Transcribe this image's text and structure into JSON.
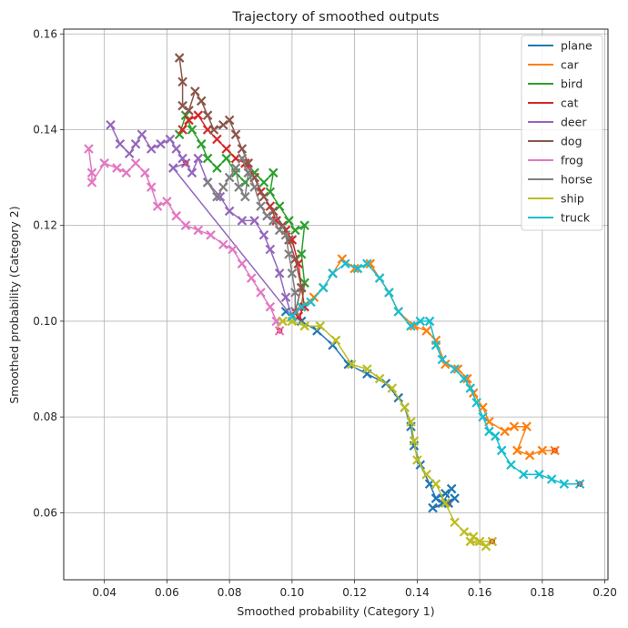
{
  "chart_data": {
    "type": "line",
    "title": "Trajectory of smoothed outputs",
    "xlabel": "Smoothed probability (Category 1)",
    "ylabel": "Smoothed probability (Category 2)",
    "xlim": [
      0.027,
      0.201
    ],
    "ylim": [
      0.046,
      0.161
    ],
    "xticks": [
      0.04,
      0.06,
      0.08,
      0.1,
      0.12,
      0.14,
      0.16,
      0.18,
      0.2
    ],
    "xtick_labels": [
      "0.04",
      "0.06",
      "0.08",
      "0.10",
      "0.12",
      "0.14",
      "0.16",
      "0.18",
      "0.20"
    ],
    "yticks": [
      0.06,
      0.08,
      0.1,
      0.12,
      0.14,
      0.16
    ],
    "ytick_labels": [
      "0.06",
      "0.08",
      "0.10",
      "0.12",
      "0.14",
      "0.16"
    ],
    "grid": true,
    "legend": "top-right",
    "marker": "x",
    "series": [
      {
        "name": "plane",
        "color": "#1f77b4",
        "points": [
          [
            0.098,
            0.102
          ],
          [
            0.103,
            0.1
          ],
          [
            0.108,
            0.098
          ],
          [
            0.113,
            0.095
          ],
          [
            0.118,
            0.091
          ],
          [
            0.124,
            0.089
          ],
          [
            0.13,
            0.087
          ],
          [
            0.134,
            0.084
          ],
          [
            0.136,
            0.082
          ],
          [
            0.138,
            0.078
          ],
          [
            0.139,
            0.074
          ],
          [
            0.141,
            0.07
          ],
          [
            0.144,
            0.066
          ],
          [
            0.146,
            0.063
          ],
          [
            0.149,
            0.064
          ],
          [
            0.151,
            0.065
          ],
          [
            0.148,
            0.062
          ],
          [
            0.152,
            0.063
          ],
          [
            0.145,
            0.061
          ],
          [
            0.15,
            0.062
          ]
        ]
      },
      {
        "name": "car",
        "color": "#ff7f0e",
        "points": [
          [
            0.103,
            0.103
          ],
          [
            0.107,
            0.105
          ],
          [
            0.11,
            0.107
          ],
          [
            0.113,
            0.11
          ],
          [
            0.116,
            0.113
          ],
          [
            0.12,
            0.111
          ],
          [
            0.125,
            0.112
          ],
          [
            0.128,
            0.109
          ],
          [
            0.131,
            0.106
          ],
          [
            0.134,
            0.102
          ],
          [
            0.139,
            0.099
          ],
          [
            0.143,
            0.098
          ],
          [
            0.146,
            0.096
          ],
          [
            0.149,
            0.091
          ],
          [
            0.153,
            0.09
          ],
          [
            0.156,
            0.088
          ],
          [
            0.158,
            0.085
          ],
          [
            0.161,
            0.082
          ],
          [
            0.163,
            0.079
          ],
          [
            0.168,
            0.077
          ],
          [
            0.171,
            0.078
          ],
          [
            0.175,
            0.078
          ],
          [
            0.172,
            0.073
          ],
          [
            0.176,
            0.072
          ],
          [
            0.18,
            0.073
          ],
          [
            0.184,
            0.073
          ]
        ]
      },
      {
        "name": "bird",
        "color": "#2ca02c",
        "points": [
          [
            0.064,
            0.139
          ],
          [
            0.066,
            0.143
          ],
          [
            0.068,
            0.14
          ],
          [
            0.071,
            0.137
          ],
          [
            0.073,
            0.134
          ],
          [
            0.076,
            0.132
          ],
          [
            0.079,
            0.134
          ],
          [
            0.082,
            0.131
          ],
          [
            0.085,
            0.129
          ],
          [
            0.088,
            0.131
          ],
          [
            0.091,
            0.129
          ],
          [
            0.094,
            0.131
          ],
          [
            0.093,
            0.127
          ],
          [
            0.096,
            0.124
          ],
          [
            0.099,
            0.121
          ],
          [
            0.101,
            0.119
          ],
          [
            0.104,
            0.12
          ],
          [
            0.103,
            0.114
          ],
          [
            0.104,
            0.108
          ],
          [
            0.103,
            0.103
          ]
        ]
      },
      {
        "name": "cat",
        "color": "#d62728",
        "points": [
          [
            0.065,
            0.14
          ],
          [
            0.067,
            0.142
          ],
          [
            0.07,
            0.143
          ],
          [
            0.073,
            0.14
          ],
          [
            0.076,
            0.138
          ],
          [
            0.079,
            0.136
          ],
          [
            0.082,
            0.134
          ],
          [
            0.085,
            0.133
          ],
          [
            0.088,
            0.13
          ],
          [
            0.09,
            0.127
          ],
          [
            0.093,
            0.124
          ],
          [
            0.095,
            0.121
          ],
          [
            0.098,
            0.119
          ],
          [
            0.1,
            0.117
          ],
          [
            0.102,
            0.112
          ],
          [
            0.103,
            0.107
          ],
          [
            0.104,
            0.103
          ],
          [
            0.102,
            0.101
          ]
        ]
      },
      {
        "name": "deer",
        "color": "#9467bd",
        "points": [
          [
            0.042,
            0.141
          ],
          [
            0.045,
            0.137
          ],
          [
            0.048,
            0.135
          ],
          [
            0.05,
            0.137
          ],
          [
            0.052,
            0.139
          ],
          [
            0.055,
            0.136
          ],
          [
            0.058,
            0.137
          ],
          [
            0.061,
            0.138
          ],
          [
            0.063,
            0.136
          ],
          [
            0.065,
            0.134
          ],
          [
            0.068,
            0.131
          ],
          [
            0.07,
            0.134
          ],
          [
            0.073,
            0.129
          ],
          [
            0.077,
            0.126
          ],
          [
            0.08,
            0.123
          ],
          [
            0.084,
            0.121
          ],
          [
            0.088,
            0.121
          ],
          [
            0.091,
            0.118
          ],
          [
            0.093,
            0.115
          ],
          [
            0.096,
            0.11
          ],
          [
            0.098,
            0.105
          ],
          [
            0.1,
            0.101
          ],
          [
            0.062,
            0.132
          ],
          [
            0.066,
            0.133
          ]
        ]
      },
      {
        "name": "dog",
        "color": "#8c564b",
        "points": [
          [
            0.064,
            0.155
          ],
          [
            0.065,
            0.15
          ],
          [
            0.065,
            0.145
          ],
          [
            0.067,
            0.144
          ],
          [
            0.069,
            0.148
          ],
          [
            0.071,
            0.146
          ],
          [
            0.073,
            0.143
          ],
          [
            0.075,
            0.14
          ],
          [
            0.078,
            0.141
          ],
          [
            0.08,
            0.142
          ],
          [
            0.082,
            0.139
          ],
          [
            0.084,
            0.136
          ],
          [
            0.086,
            0.133
          ],
          [
            0.088,
            0.13
          ],
          [
            0.091,
            0.126
          ],
          [
            0.094,
            0.123
          ],
          [
            0.097,
            0.12
          ],
          [
            0.099,
            0.117
          ],
          [
            0.101,
            0.113
          ],
          [
            0.103,
            0.107
          ],
          [
            0.101,
            0.102
          ]
        ]
      },
      {
        "name": "frog",
        "color": "#e377c2",
        "points": [
          [
            0.035,
            0.136
          ],
          [
            0.036,
            0.131
          ],
          [
            0.036,
            0.129
          ],
          [
            0.04,
            0.133
          ],
          [
            0.044,
            0.132
          ],
          [
            0.047,
            0.131
          ],
          [
            0.05,
            0.133
          ],
          [
            0.053,
            0.131
          ],
          [
            0.055,
            0.128
          ],
          [
            0.057,
            0.124
          ],
          [
            0.06,
            0.125
          ],
          [
            0.063,
            0.122
          ],
          [
            0.066,
            0.12
          ],
          [
            0.07,
            0.119
          ],
          [
            0.074,
            0.118
          ],
          [
            0.078,
            0.116
          ],
          [
            0.081,
            0.115
          ],
          [
            0.084,
            0.112
          ],
          [
            0.087,
            0.109
          ],
          [
            0.09,
            0.106
          ],
          [
            0.093,
            0.103
          ],
          [
            0.095,
            0.1
          ],
          [
            0.096,
            0.098
          ]
        ]
      },
      {
        "name": "horse",
        "color": "#7f7f7f",
        "points": [
          [
            0.073,
            0.129
          ],
          [
            0.076,
            0.126
          ],
          [
            0.078,
            0.128
          ],
          [
            0.08,
            0.13
          ],
          [
            0.082,
            0.132
          ],
          [
            0.083,
            0.128
          ],
          [
            0.085,
            0.126
          ],
          [
            0.086,
            0.131
          ],
          [
            0.084,
            0.134
          ],
          [
            0.088,
            0.128
          ],
          [
            0.09,
            0.124
          ],
          [
            0.092,
            0.122
          ],
          [
            0.094,
            0.121
          ],
          [
            0.096,
            0.119
          ],
          [
            0.098,
            0.118
          ],
          [
            0.099,
            0.114
          ],
          [
            0.1,
            0.11
          ],
          [
            0.101,
            0.106
          ],
          [
            0.101,
            0.102
          ]
        ]
      },
      {
        "name": "ship",
        "color": "#bcbd22",
        "points": [
          [
            0.097,
            0.1
          ],
          [
            0.1,
            0.1
          ],
          [
            0.104,
            0.099
          ],
          [
            0.109,
            0.099
          ],
          [
            0.114,
            0.096
          ],
          [
            0.119,
            0.091
          ],
          [
            0.124,
            0.09
          ],
          [
            0.128,
            0.088
          ],
          [
            0.132,
            0.086
          ],
          [
            0.136,
            0.082
          ],
          [
            0.138,
            0.079
          ],
          [
            0.139,
            0.075
          ],
          [
            0.14,
            0.071
          ],
          [
            0.143,
            0.068
          ],
          [
            0.146,
            0.066
          ],
          [
            0.149,
            0.062
          ],
          [
            0.152,
            0.058
          ],
          [
            0.155,
            0.056
          ],
          [
            0.158,
            0.055
          ],
          [
            0.16,
            0.054
          ],
          [
            0.162,
            0.053
          ],
          [
            0.157,
            0.054
          ],
          [
            0.164,
            0.054
          ]
        ]
      },
      {
        "name": "truck",
        "color": "#17becf",
        "points": [
          [
            0.1,
            0.101
          ],
          [
            0.103,
            0.103
          ],
          [
            0.106,
            0.104
          ],
          [
            0.11,
            0.107
          ],
          [
            0.113,
            0.11
          ],
          [
            0.117,
            0.112
          ],
          [
            0.121,
            0.111
          ],
          [
            0.124,
            0.112
          ],
          [
            0.128,
            0.109
          ],
          [
            0.131,
            0.106
          ],
          [
            0.134,
            0.102
          ],
          [
            0.138,
            0.099
          ],
          [
            0.141,
            0.1
          ],
          [
            0.144,
            0.1
          ],
          [
            0.146,
            0.095
          ],
          [
            0.148,
            0.092
          ],
          [
            0.152,
            0.09
          ],
          [
            0.155,
            0.088
          ],
          [
            0.157,
            0.086
          ],
          [
            0.159,
            0.083
          ],
          [
            0.161,
            0.08
          ],
          [
            0.163,
            0.077
          ],
          [
            0.165,
            0.076
          ],
          [
            0.167,
            0.073
          ],
          [
            0.17,
            0.07
          ],
          [
            0.174,
            0.068
          ],
          [
            0.179,
            0.068
          ],
          [
            0.183,
            0.067
          ],
          [
            0.187,
            0.066
          ],
          [
            0.192,
            0.066
          ]
        ]
      }
    ]
  }
}
